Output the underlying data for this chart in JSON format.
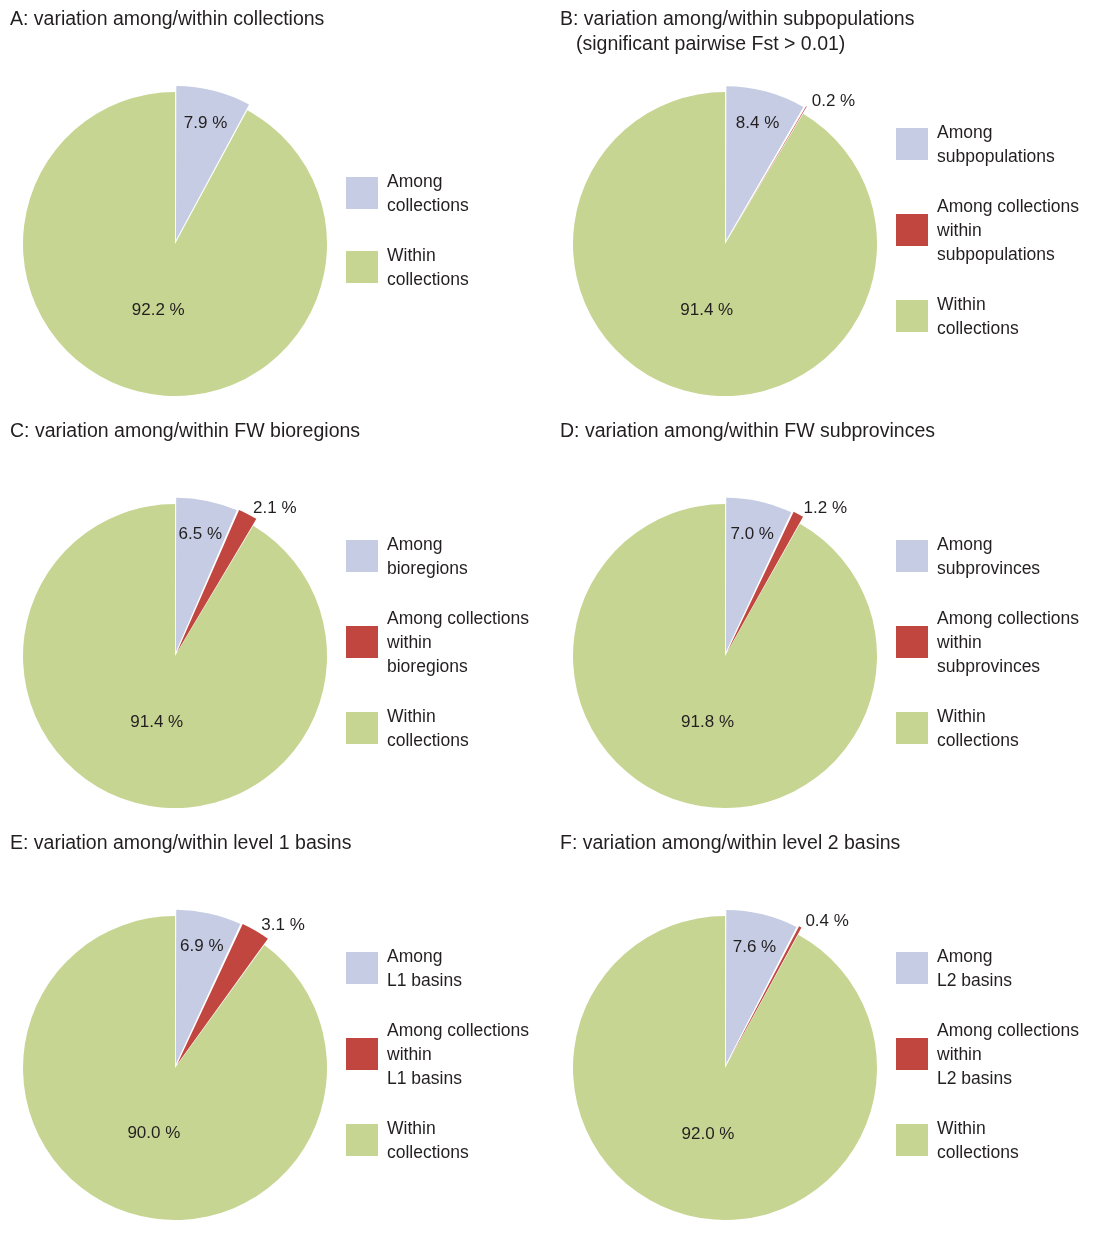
{
  "chart_data": [
    {
      "type": "pie",
      "title": "A: variation among/within collections",
      "categories": [
        "Among\ncollections",
        "Within\ncollections"
      ],
      "values": [
        7.9,
        92.2
      ],
      "value_labels": [
        "7.9 %",
        "92.2 %"
      ],
      "colors": [
        "#c5cce3",
        "#c6d592"
      ],
      "legend": "right"
    },
    {
      "type": "pie",
      "title": "B: variation among/within subpopulations",
      "subtitle": "(significant pairwise Fst > 0.01)",
      "categories": [
        "Among\nsubpopulations",
        "Among collections\nwithin\nsubpopulations",
        "Within\ncollections"
      ],
      "values": [
        8.4,
        0.2,
        91.4
      ],
      "value_labels": [
        "8.4 %",
        "0.2 %",
        "91.4 %"
      ],
      "colors": [
        "#c5cce3",
        "#c0463f",
        "#c6d592"
      ],
      "legend": "right"
    },
    {
      "type": "pie",
      "title": "C: variation among/within FW bioregions",
      "categories": [
        "Among\nbioregions",
        "Among collections\nwithin\nbioregions",
        "Within\ncollections"
      ],
      "values": [
        6.5,
        2.1,
        91.4
      ],
      "value_labels": [
        "6.5 %",
        "2.1 %",
        "91.4 %"
      ],
      "colors": [
        "#c5cce3",
        "#c0463f",
        "#c6d592"
      ],
      "legend": "right"
    },
    {
      "type": "pie",
      "title": "D: variation among/within FW subprovinces",
      "categories": [
        "Among\nsubprovinces",
        "Among collections\nwithin\nsubprovinces",
        "Within\ncollections"
      ],
      "values": [
        7.0,
        1.2,
        91.8
      ],
      "value_labels": [
        "7.0 %",
        "1.2 %",
        "91.8 %"
      ],
      "colors": [
        "#c5cce3",
        "#c0463f",
        "#c6d592"
      ],
      "legend": "right"
    },
    {
      "type": "pie",
      "title": "E: variation among/within level 1 basins",
      "categories": [
        "Among\nL1 basins",
        "Among collections\nwithin\nL1 basins",
        "Within\ncollections"
      ],
      "values": [
        6.9,
        3.1,
        90.0
      ],
      "value_labels": [
        "6.9 %",
        "3.1 %",
        "90.0 %"
      ],
      "colors": [
        "#c5cce3",
        "#c0463f",
        "#c6d592"
      ],
      "legend": "right"
    },
    {
      "type": "pie",
      "title": "F: variation among/within level 2 basins",
      "categories": [
        "Among\nL2 basins",
        "Among collections\nwithin\nL2 basins",
        "Within\ncollections"
      ],
      "values": [
        7.6,
        0.4,
        92.0
      ],
      "value_labels": [
        "7.6 %",
        "0.4 %",
        "92.0 %"
      ],
      "colors": [
        "#c5cce3",
        "#c0463f",
        "#c6d592"
      ],
      "legend": "right"
    }
  ]
}
